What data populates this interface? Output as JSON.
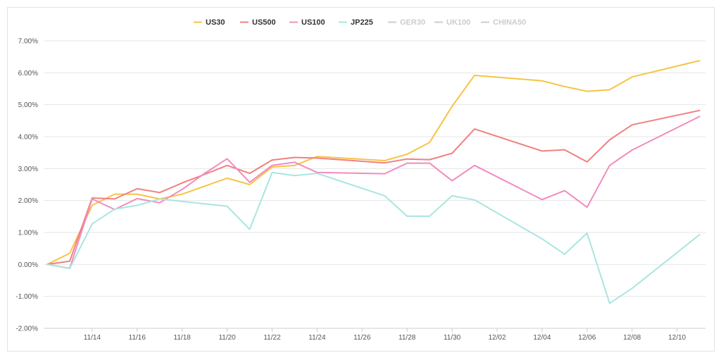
{
  "chart_data": {
    "type": "line",
    "title": "",
    "xlabel": "",
    "ylabel": "",
    "ylim": [
      -2,
      7
    ],
    "yticks": [
      "7.00%",
      "6.00%",
      "5.00%",
      "4.00%",
      "3.00%",
      "2.00%",
      "1.00%",
      "0.00%",
      "-1.00%",
      "-2.00%"
    ],
    "ytick_values": [
      7,
      6,
      5,
      4,
      3,
      2,
      1,
      0,
      -1,
      -2
    ],
    "xticks": [
      "11/14",
      "11/16",
      "11/18",
      "11/20",
      "11/22",
      "11/24",
      "11/26",
      "11/28",
      "11/30",
      "12/02",
      "12/04",
      "12/06",
      "12/08",
      "12/10"
    ],
    "x_dates": [
      "11/12",
      "11/13",
      "11/14",
      "11/15",
      "11/16",
      "11/17",
      "11/18",
      "11/19",
      "11/20",
      "11/21",
      "11/22",
      "11/23",
      "11/24",
      "11/27",
      "11/28",
      "11/29",
      "11/30",
      "12/01",
      "12/04",
      "12/05",
      "12/06",
      "12/07",
      "12/08",
      "12/11"
    ],
    "legend_position": "top-center",
    "grid": true,
    "series": [
      {
        "name": "US30",
        "color": "#f7c346",
        "visible": true,
        "values": [
          0.0,
          0.35,
          1.85,
          2.2,
          2.2,
          2.05,
          2.2,
          2.45,
          2.7,
          2.5,
          3.05,
          3.1,
          3.38,
          3.25,
          3.45,
          3.82,
          4.95,
          5.92,
          5.75,
          5.57,
          5.42,
          5.47,
          5.87,
          6.38
        ]
      },
      {
        "name": "US500",
        "color": "#f08080",
        "visible": true,
        "values": [
          0.0,
          0.1,
          2.08,
          2.05,
          2.37,
          2.25,
          2.55,
          2.82,
          3.1,
          2.85,
          3.27,
          3.35,
          3.33,
          3.18,
          3.3,
          3.28,
          3.48,
          4.24,
          3.55,
          3.59,
          3.21,
          3.9,
          4.37,
          4.82
        ]
      },
      {
        "name": "US100",
        "color": "#f08cbf",
        "visible": true,
        "values": [
          0.0,
          -0.12,
          2.05,
          1.72,
          2.06,
          1.93,
          2.35,
          2.85,
          3.31,
          2.57,
          3.1,
          3.2,
          2.88,
          2.84,
          3.17,
          3.17,
          2.62,
          3.1,
          2.03,
          2.31,
          1.79,
          3.1,
          3.58,
          4.63
        ]
      },
      {
        "name": "JP225",
        "color": "#a8e6e0",
        "visible": true,
        "values": [
          0.0,
          -0.13,
          1.27,
          1.73,
          1.85,
          2.05,
          null,
          null,
          1.82,
          1.1,
          2.88,
          2.78,
          2.85,
          2.15,
          1.51,
          1.51,
          2.15,
          2.02,
          0.8,
          0.32,
          0.98,
          -1.22,
          -0.75,
          0.93
        ]
      },
      {
        "name": "GER30",
        "color": "#c8c8c8",
        "visible": false,
        "values": []
      },
      {
        "name": "UK100",
        "color": "#c8c8c8",
        "visible": false,
        "values": []
      },
      {
        "name": "CHINA50",
        "color": "#c8c8c8",
        "visible": false,
        "values": []
      }
    ]
  }
}
